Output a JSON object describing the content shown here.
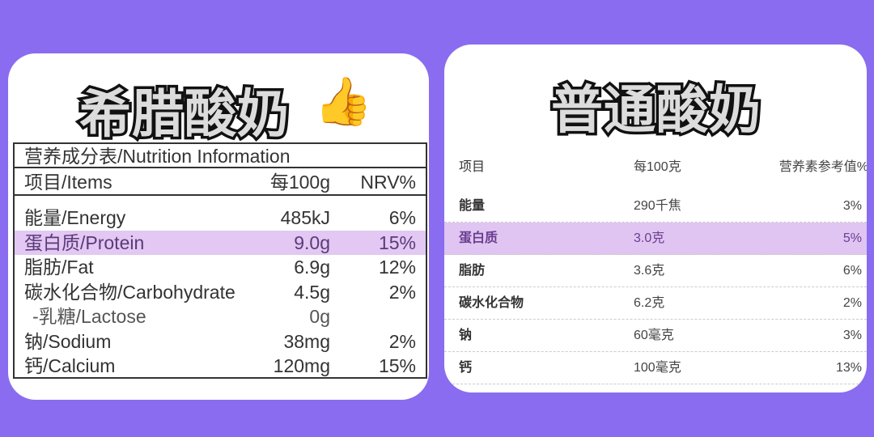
{
  "background_color": "#8a6cf0",
  "highlight_color": "#e2c8f2",
  "left": {
    "title": "希腊酸奶",
    "title_emoji": "👍",
    "table_title": "营养成分表/Nutrition Information",
    "headers": [
      "项目/Items",
      "每100g",
      "NRV%"
    ],
    "rows": [
      {
        "item": "能量/Energy",
        "per100": "485kJ",
        "nrv": "6%"
      },
      {
        "item": "蛋白质/Protein",
        "per100": "9.0g",
        "nrv": "15%",
        "highlighted": true
      },
      {
        "item": "脂肪/Fat",
        "per100": "6.9g",
        "nrv": "12%"
      },
      {
        "item": "碳水化合物/Carbohydrate",
        "per100": "4.5g",
        "nrv": "2%"
      },
      {
        "item": "-乳糖/Lactose",
        "per100": "0g",
        "nrv": ""
      },
      {
        "item": "钠/Sodium",
        "per100": "38mg",
        "nrv": "2%"
      },
      {
        "item": "钙/Calcium",
        "per100": "120mg",
        "nrv": "15%"
      }
    ]
  },
  "right": {
    "title": "普通酸奶",
    "headers": [
      "项目",
      "每100克",
      "营养素参考值%"
    ],
    "rows": [
      {
        "item": "能量",
        "per100": "290千焦",
        "nrv": "3%"
      },
      {
        "item": "蛋白质",
        "per100": "3.0克",
        "nrv": "5%",
        "highlighted": true
      },
      {
        "item": "脂肪",
        "per100": "3.6克",
        "nrv": "6%"
      },
      {
        "item": "碳水化合物",
        "per100": "6.2克",
        "nrv": "2%"
      },
      {
        "item": "钠",
        "per100": "60毫克",
        "nrv": "3%"
      },
      {
        "item": "钙",
        "per100": "100毫克",
        "nrv": "13%"
      }
    ]
  }
}
